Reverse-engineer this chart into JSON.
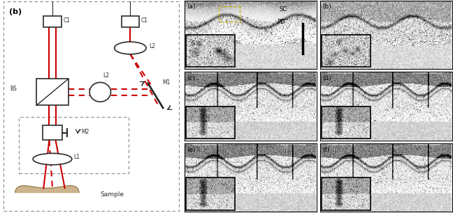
{
  "fig_width": 6.48,
  "fig_height": 3.06,
  "left_label": "(b)",
  "right_labels": [
    "(a)",
    "(b)",
    "(c)",
    "(d)",
    "(e)",
    "(f)"
  ],
  "red_color": "#cc0000",
  "dark_color": "#2a2a2a",
  "gray_border": "#888888",
  "sample_label": "Sample",
  "sc_label": "SC",
  "pd_label": "PD",
  "s_label": "S"
}
